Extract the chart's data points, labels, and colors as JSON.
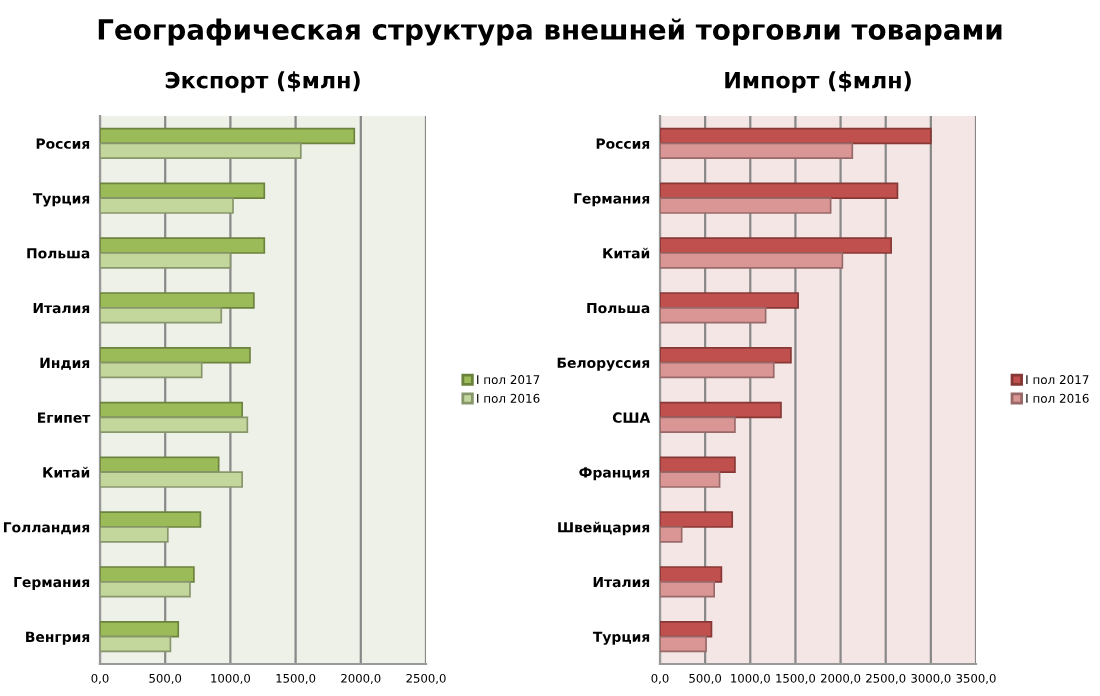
{
  "chart_data": [
    {
      "type": "bar",
      "orientation": "horizontal",
      "title": "Экспорт ($млн)",
      "annotations": [
        "Географическая структура внешней торговли товарами"
      ],
      "categories": [
        "Россия",
        "Турция",
        "Польша",
        "Италия",
        "Индия",
        "Египет",
        "Китай",
        "Голландия",
        "Германия",
        "Венгрия"
      ],
      "series": [
        {
          "name": "I пол 2017",
          "color": "#9bbb59",
          "values": [
            1950,
            1260,
            1260,
            1180,
            1150,
            1090,
            910,
            770,
            720,
            600
          ]
        },
        {
          "name": "I пол 2016",
          "color": "#c3d69b",
          "values": [
            1540,
            1020,
            1000,
            930,
            780,
            1130,
            1090,
            520,
            690,
            540
          ]
        }
      ],
      "xlim": [
        0,
        2500
      ],
      "xticks": [
        {
          "value": 0,
          "label": "0,0"
        },
        {
          "value": 500,
          "label": "500,0"
        },
        {
          "value": 1000,
          "label": "1000,0"
        },
        {
          "value": 1500,
          "label": "1500,0"
        },
        {
          "value": 2000,
          "label": "2000,0"
        },
        {
          "value": 2500,
          "label": "2500,0"
        }
      ],
      "grid": "x",
      "legend": "right"
    },
    {
      "type": "bar",
      "orientation": "horizontal",
      "title": "Импорт ($млн)",
      "categories": [
        "Россия",
        "Германия",
        "Китай",
        "Польша",
        "Белоруссия",
        "США",
        "Франция",
        "Швейцария",
        "Италия",
        "Турция"
      ],
      "series": [
        {
          "name": "I пол 2017",
          "color": "#c0504d",
          "values": [
            3000,
            2630,
            2560,
            1530,
            1450,
            1340,
            830,
            800,
            680,
            570
          ]
        },
        {
          "name": "I пол 2016",
          "color": "#d99694",
          "values": [
            2130,
            1890,
            2020,
            1170,
            1260,
            830,
            660,
            240,
            600,
            510
          ]
        }
      ],
      "xlim": [
        0,
        3500
      ],
      "xticks": [
        {
          "value": 0,
          "label": "0,0"
        },
        {
          "value": 500,
          "label": "500,0"
        },
        {
          "value": 1000,
          "label": "1000,0"
        },
        {
          "value": 1500,
          "label": "1500,0"
        },
        {
          "value": 2000,
          "label": "2000,0"
        },
        {
          "value": 2500,
          "label": "2500,0"
        },
        {
          "value": 3000,
          "label": "3000,0"
        },
        {
          "value": 3500,
          "label": "3500,0"
        }
      ],
      "grid": "x",
      "legend": "right"
    }
  ]
}
